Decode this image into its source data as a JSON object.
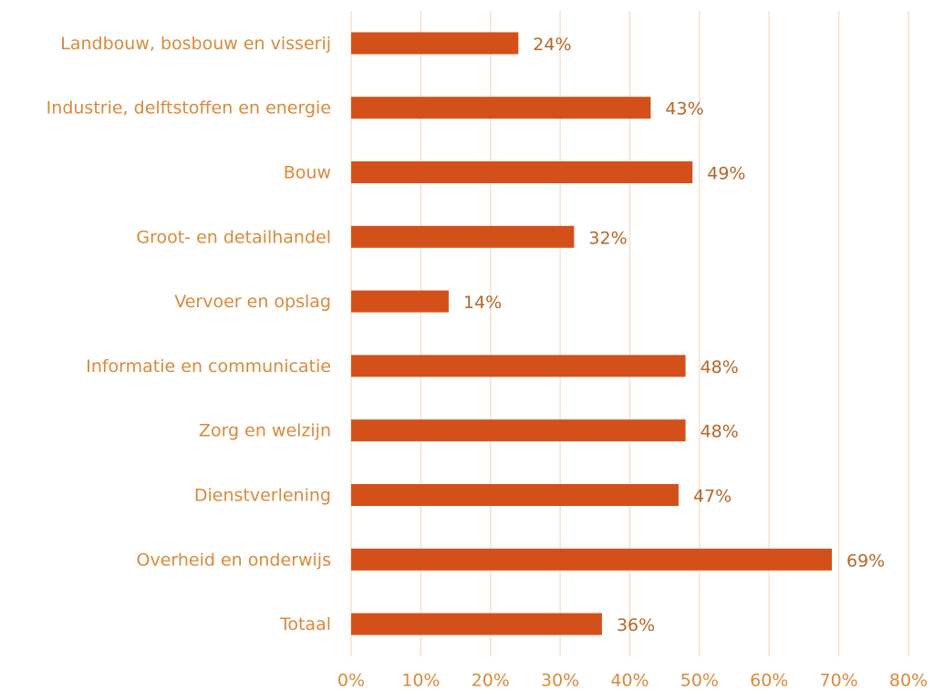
{
  "chart_data": {
    "type": "bar",
    "orientation": "horizontal",
    "categories": [
      "Landbouw, bosbouw en visserij",
      "Industrie, delftstoffen en energie",
      "Bouw",
      "Groot- en detailhandel",
      "Vervoer en opslag",
      "Informatie en communicatie",
      "Zorg en welzijn",
      "Dienstverlening",
      "Overheid en onderwijs",
      "Totaal"
    ],
    "values": [
      24,
      43,
      49,
      32,
      14,
      48,
      48,
      47,
      69,
      36
    ],
    "value_labels": [
      "24%",
      "43%",
      "49%",
      "32%",
      "14%",
      "48%",
      "48%",
      "47%",
      "69%",
      "36%"
    ],
    "color": "#d4501a",
    "xlim": [
      0,
      80
    ],
    "xticks": [
      {
        "value": 0,
        "label": "0%"
      },
      {
        "value": 10,
        "label": "10%"
      },
      {
        "value": 20,
        "label": "20%"
      },
      {
        "value": 30,
        "label": "30%"
      },
      {
        "value": 40,
        "label": "40%"
      },
      {
        "value": 50,
        "label": "50%"
      },
      {
        "value": 60,
        "label": "60%"
      },
      {
        "value": 70,
        "label": "70%"
      },
      {
        "value": 80,
        "label": "80%"
      }
    ],
    "grid": true
  }
}
